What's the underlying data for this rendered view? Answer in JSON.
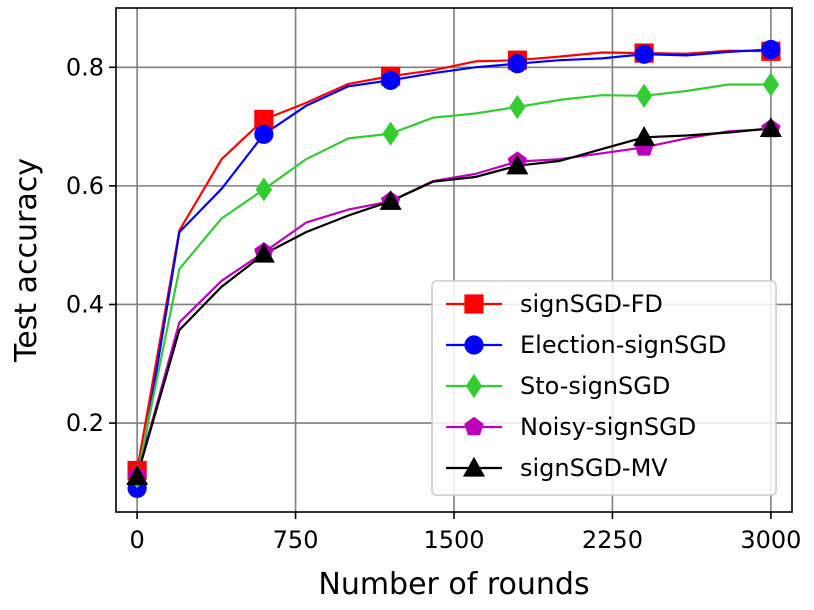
{
  "chart_data": {
    "type": "line",
    "title": "",
    "xlabel": "Number of rounds",
    "ylabel": "Test accuracy",
    "xlim": [
      -100,
      3100
    ],
    "ylim": [
      0.05,
      0.9
    ],
    "xticks": [
      0,
      750,
      1500,
      2250,
      3000
    ],
    "xtick_labels": [
      "0",
      "750",
      "1500",
      "2250",
      "3000"
    ],
    "yticks": [
      0.2,
      0.4,
      0.6,
      0.8
    ],
    "ytick_labels": [
      "0.2",
      "0.4",
      "0.6",
      "0.8"
    ],
    "grid": true,
    "legend_position": "lower-right",
    "x": [
      0,
      200,
      400,
      600,
      800,
      1000,
      1200,
      1400,
      1600,
      1800,
      2000,
      2200,
      2400,
      2600,
      2800,
      3000
    ],
    "series": [
      {
        "name": "signSGD-FD",
        "color": "#ff0000",
        "marker": "square",
        "marker_every": 3,
        "values": [
          0.12,
          0.525,
          0.645,
          0.712,
          0.74,
          0.772,
          0.785,
          0.795,
          0.81,
          0.812,
          0.818,
          0.825,
          0.824,
          0.823,
          0.828,
          0.827
        ]
      },
      {
        "name": "Election-signSGD",
        "color": "#0000ff",
        "marker": "circle",
        "marker_every": 3,
        "values": [
          0.09,
          0.522,
          0.595,
          0.687,
          0.735,
          0.768,
          0.778,
          0.79,
          0.8,
          0.806,
          0.812,
          0.815,
          0.822,
          0.82,
          0.826,
          0.83
        ]
      },
      {
        "name": "Sto-signSGD",
        "color": "#33cc33",
        "marker": "diamond",
        "marker_every": 3,
        "values": [
          0.11,
          0.46,
          0.545,
          0.594,
          0.645,
          0.68,
          0.688,
          0.715,
          0.722,
          0.733,
          0.745,
          0.753,
          0.752,
          0.76,
          0.771,
          0.771
        ]
      },
      {
        "name": "Noisy-signSGD",
        "color": "#bb00bb",
        "marker": "pentagon",
        "marker_every": 3,
        "values": [
          0.11,
          0.37,
          0.44,
          0.488,
          0.538,
          0.56,
          0.574,
          0.608,
          0.62,
          0.641,
          0.645,
          0.655,
          0.665,
          0.68,
          0.692,
          0.696
        ]
      },
      {
        "name": "signSGD-MV",
        "color": "#000000",
        "marker": "triangle",
        "marker_every": 3,
        "values": [
          0.11,
          0.357,
          0.43,
          0.485,
          0.522,
          0.55,
          0.574,
          0.607,
          0.615,
          0.634,
          0.642,
          0.662,
          0.682,
          0.685,
          0.69,
          0.697
        ]
      }
    ]
  }
}
